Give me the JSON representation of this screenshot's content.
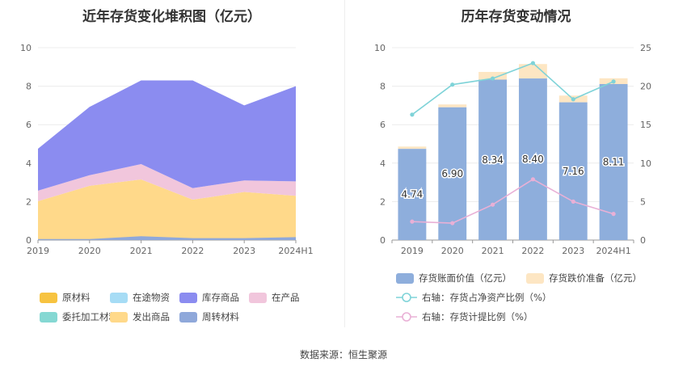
{
  "source_label": "数据来源：恒生聚源",
  "chart_data": [
    {
      "type": "area",
      "title": "近年存货变化堆积图（亿元）",
      "x": [
        "2019",
        "2020",
        "2021",
        "2022",
        "2023",
        "2024H1"
      ],
      "ylim": [
        0,
        10
      ],
      "yticks": [
        0,
        2,
        4,
        6,
        8,
        10
      ],
      "grid": true,
      "stacked": true,
      "legend_position": "bottom",
      "series": [
        {
          "name": "原材料",
          "color": "#f7c340",
          "values": [
            0,
            0,
            0,
            0,
            0,
            0
          ]
        },
        {
          "name": "在途物资",
          "color": "#a6dcf5",
          "values": [
            0,
            0,
            0,
            0,
            0,
            0
          ]
        },
        {
          "name": "库存商品",
          "color": "#8b8cf0",
          "values": [
            2.18,
            3.55,
            4.35,
            5.6,
            3.9,
            4.95
          ]
        },
        {
          "name": "在产品",
          "color": "#f1c6dc",
          "values": [
            0.55,
            0.55,
            0.8,
            0.6,
            0.6,
            0.75
          ]
        },
        {
          "name": "委托加工材料",
          "color": "#85d8d3",
          "values": [
            0,
            0,
            0,
            0,
            0,
            0
          ]
        },
        {
          "name": "发出商品",
          "color": "#ffd98a",
          "values": [
            1.9,
            2.7,
            2.9,
            1.9,
            2.3,
            2.05
          ]
        },
        {
          "name": "周转材料",
          "color": "#8fa8da",
          "values": [
            0.12,
            0.12,
            0.25,
            0.2,
            0.2,
            0.25
          ]
        }
      ],
      "stack_order": [
        "周转材料",
        "发出商品",
        "委托加工材料",
        "在产品",
        "库存商品",
        "在途物资",
        "原材料"
      ],
      "extra_band": {
        "series": "发出商品",
        "bottom_values": [
          0.05,
          0.05,
          0.2,
          0.1,
          0.1,
          0.15
        ]
      }
    },
    {
      "type": "bar",
      "title": "历年存货变动情况",
      "categories": [
        "2019",
        "2020",
        "2021",
        "2022",
        "2023",
        "2024H1"
      ],
      "ylim": [
        0,
        10
      ],
      "yticks": [
        0,
        2,
        4,
        6,
        8,
        10
      ],
      "y2lim": [
        0,
        25
      ],
      "y2ticks": [
        0,
        5,
        10,
        15,
        20,
        25
      ],
      "grid": true,
      "legend_position": "bottom",
      "series": [
        {
          "name": "存货账面价值（亿元）",
          "color": "#8eaedc",
          "values": [
            4.74,
            6.9,
            8.34,
            8.4,
            7.16,
            8.11
          ],
          "labels": [
            "4.74",
            "6.90",
            "8.34",
            "8.40",
            "7.16",
            "8.11"
          ]
        },
        {
          "name": "存货跌价准备（亿元）",
          "color": "#fde6c3",
          "values": [
            0.12,
            0.15,
            0.4,
            0.75,
            0.35,
            0.3
          ]
        },
        {
          "name": "右轴：存货占净资产比例（%）",
          "axis": "right",
          "type": "line",
          "color": "#7fd3d8",
          "values": [
            16.3,
            20.2,
            21.0,
            23.0,
            18.3,
            20.6
          ]
        },
        {
          "name": "右轴：存货计提比例（%）",
          "axis": "right",
          "type": "line",
          "color": "#e9b0d6",
          "values": [
            2.4,
            2.2,
            4.6,
            7.9,
            5.0,
            3.4
          ]
        }
      ]
    }
  ]
}
